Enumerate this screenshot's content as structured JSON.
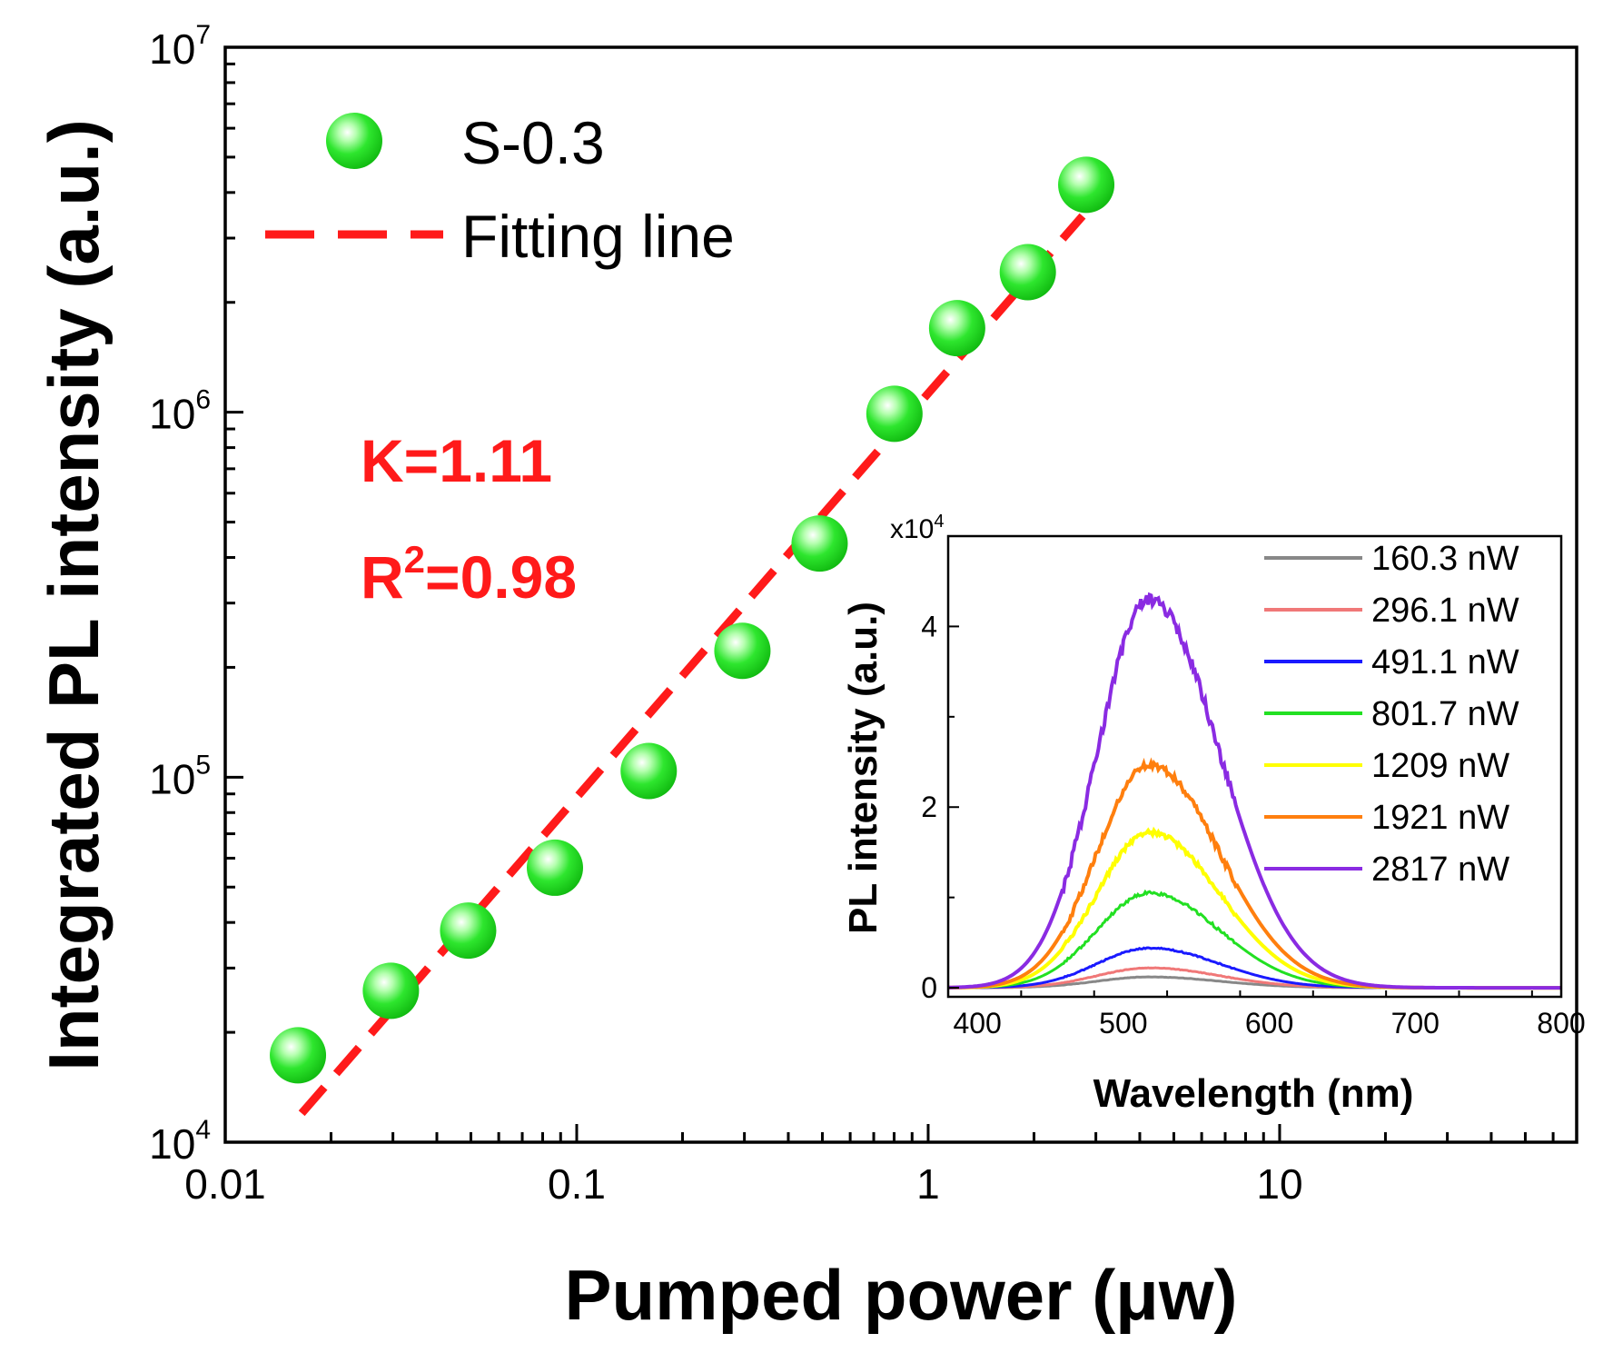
{
  "chart_data": [
    {
      "type": "scatter",
      "xlabel": "Pumped power (μw)",
      "ylabel": "Integrated PL intensity (a.u.)",
      "xscale": "log",
      "yscale": "log",
      "xlim": [
        0.01,
        70
      ],
      "ylim": [
        10000,
        10000000
      ],
      "x_ticks": [
        0.01,
        0.1,
        1,
        10
      ],
      "x_tick_labels": [
        "0.01",
        "0.1",
        "1",
        "10"
      ],
      "y_ticks": [
        10000,
        100000,
        1000000,
        10000000
      ],
      "y_tick_base": "10",
      "y_tick_exponents": [
        "4",
        "5",
        "6",
        "7"
      ],
      "legend_position": "top-left",
      "series": [
        {
          "name": "S-0.3",
          "kind": "scatter",
          "color": "#22e022",
          "x": [
            0.0161,
            0.0296,
            0.0491,
            0.0867,
            0.1603,
            0.2961,
            0.4911,
            0.8017,
            1.209,
            1.921,
            2.817
          ],
          "y": [
            17300,
            26000,
            38000,
            56500,
            104000,
            222000,
            437000,
            990000,
            1700000,
            2420000,
            4200000
          ]
        },
        {
          "name": "Fitting line",
          "kind": "line",
          "style": "dashed",
          "color": "#ff1a1a",
          "x": [
            0.0165,
            2.75
          ],
          "y": [
            12000,
            3450000
          ]
        }
      ],
      "annotations": [
        {
          "text": "K=1.11",
          "color": "#ff1a1a"
        },
        {
          "text_base": "R",
          "text_sup": "2",
          "text_rest": "=0.98",
          "color": "#ff1a1a"
        }
      ]
    },
    {
      "type": "line",
      "inset": true,
      "xlabel": "Wavelength (nm)",
      "ylabel": "PL intensity (a.u.)",
      "y_multiplier_base": "x10",
      "y_multiplier_exp": "4",
      "xlim": [
        380,
        800
      ],
      "ylim": [
        -0.1,
        5.0
      ],
      "x_ticks": [
        400,
        500,
        600,
        700,
        800
      ],
      "x_tick_labels": [
        "400",
        "500",
        "600",
        "700",
        "800"
      ],
      "y_ticks": [
        0,
        2,
        4
      ],
      "y_tick_labels": [
        "0",
        "2",
        "4"
      ],
      "legend_position": "top-right",
      "peak_wavelength": 518,
      "series": [
        {
          "name": "160.3 nW",
          "color": "#888888",
          "peak": 0.12
        },
        {
          "name": "296.1 nW",
          "color": "#f07878",
          "peak": 0.22
        },
        {
          "name": "491.1 nW",
          "color": "#1a1aff",
          "peak": 0.44
        },
        {
          "name": "801.7 nW",
          "color": "#22e022",
          "peak": 1.05
        },
        {
          "name": "1209 nW",
          "color": "#ffff00",
          "peak": 1.72
        },
        {
          "name": "1921 nW",
          "color": "#ff7f0e",
          "peak": 2.47
        },
        {
          "name": "2817 nW",
          "color": "#8a2be2",
          "peak": 4.3
        }
      ]
    }
  ]
}
